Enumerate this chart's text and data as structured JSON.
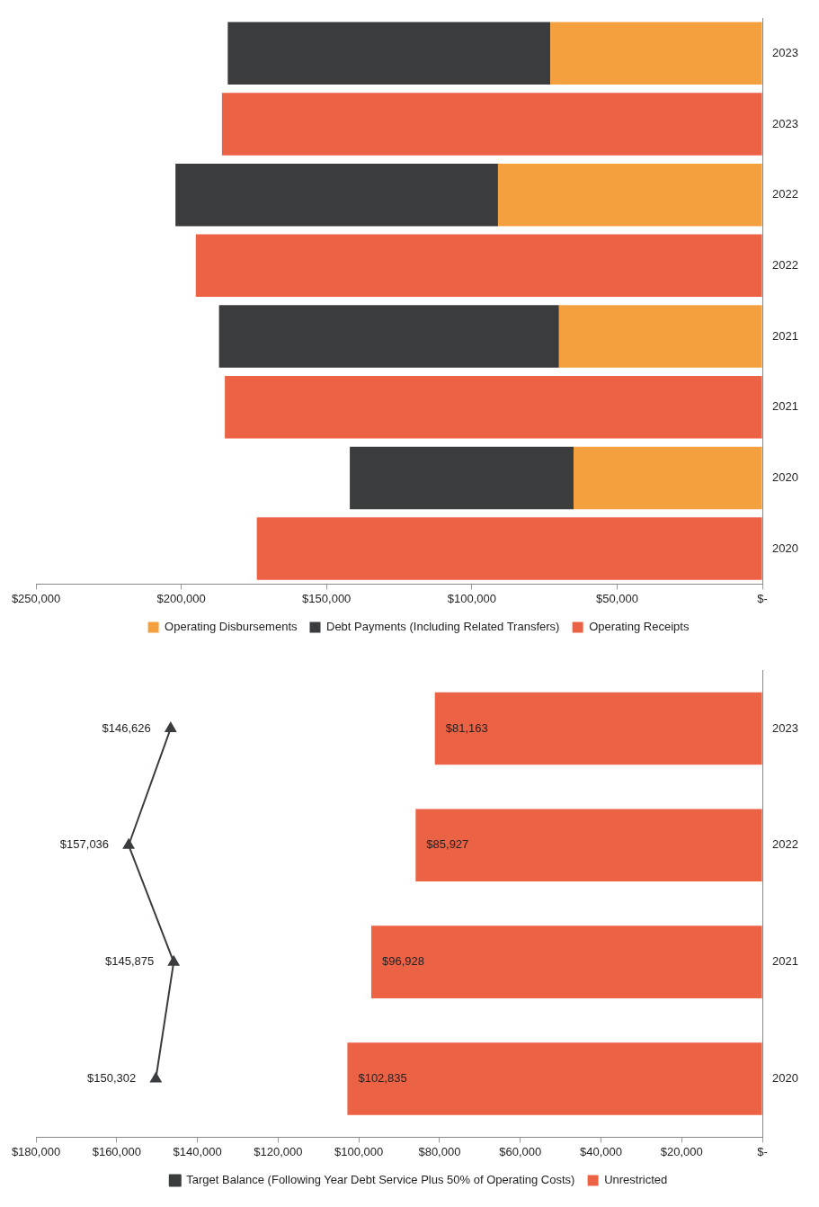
{
  "chart_data": [
    {
      "type": "bar",
      "orientation": "horizontal",
      "stacked": true,
      "categories": [
        "2023",
        "2023",
        "2022",
        "2022",
        "2021",
        "2021",
        "2020",
        "2020"
      ],
      "series": [
        {
          "name": "Operating Disbursements",
          "color": "#f5a03f",
          "values": [
            73000,
            null,
            91000,
            null,
            70000,
            null,
            65000,
            null
          ]
        },
        {
          "name": "Debt Payments (Including Related Transfers)",
          "color": "#3b3c3e",
          "values": [
            111000,
            null,
            111000,
            null,
            117000,
            null,
            77000,
            null
          ]
        },
        {
          "name": "Operating Receipts",
          "color": "#ec6245",
          "values": [
            null,
            186000,
            null,
            195000,
            null,
            185000,
            null,
            174000
          ]
        }
      ],
      "xlim": [
        250000,
        0
      ],
      "xticks": [
        {
          "value": 0,
          "label": "$-"
        },
        {
          "value": 50000,
          "label": "$50,000"
        },
        {
          "value": 100000,
          "label": "$100,000"
        },
        {
          "value": 150000,
          "label": "$150,000"
        },
        {
          "value": 200000,
          "label": "$200,000"
        },
        {
          "value": 250000,
          "label": "$250,000"
        }
      ],
      "legend": "bottom"
    },
    {
      "type": "bar",
      "orientation": "horizontal",
      "marker": "triangle",
      "categories": [
        "2023",
        "2022",
        "2021",
        "2020"
      ],
      "series": [
        {
          "name": "Unrestricted",
          "color": "#ec6245",
          "values": [
            81163,
            85927,
            96928,
            102835
          ],
          "value_labels": [
            "$81,163",
            "$85,927",
            "$96,928",
            "$102,835"
          ]
        },
        {
          "name": "Target Balance (Following Year Debt Service Plus 50% of Operating Costs)",
          "type": "line",
          "color": "#3b3c3e",
          "values": [
            146626,
            157036,
            145875,
            150302
          ],
          "value_labels": [
            "$146,626",
            "$157,036",
            "$145,875",
            "$150,302"
          ]
        }
      ],
      "xlim": [
        180000,
        0
      ],
      "xticks": [
        {
          "value": 0,
          "label": "$-"
        },
        {
          "value": 20000,
          "label": "$20,000"
        },
        {
          "value": 40000,
          "label": "$40,000"
        },
        {
          "value": 60000,
          "label": "$60,000"
        },
        {
          "value": 80000,
          "label": "$80,000"
        },
        {
          "value": 100000,
          "label": "$100,000"
        },
        {
          "value": 120000,
          "label": "$120,000"
        },
        {
          "value": 140000,
          "label": "$140,000"
        },
        {
          "value": 160000,
          "label": "$160,000"
        },
        {
          "value": 180000,
          "label": "$180,000"
        }
      ],
      "legend": "bottom"
    }
  ]
}
